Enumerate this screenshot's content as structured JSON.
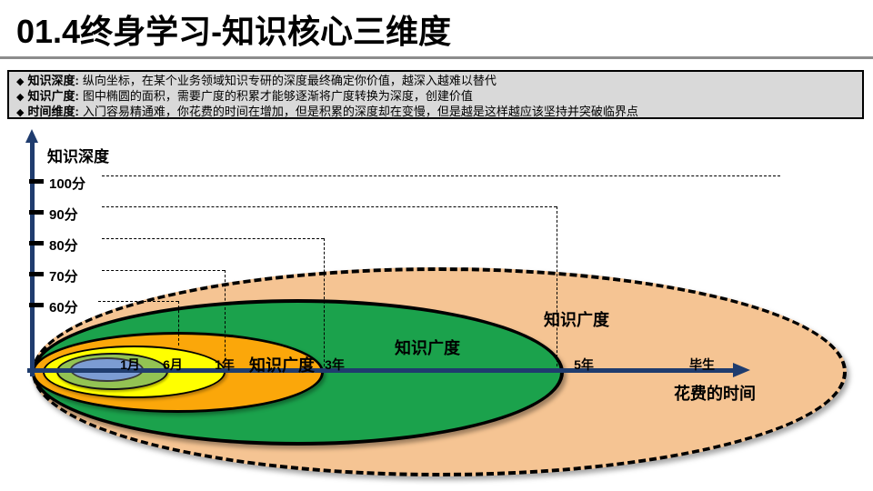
{
  "title": "01.4终身学习-知识核心三维度",
  "info_box": {
    "items": [
      {
        "bullet": "◆",
        "label": "知识深度:",
        "text": "纵向坐标，在某个业务领域知识专研的深度最终确定你价值，越深入越难以替代"
      },
      {
        "bullet": "◆",
        "label": "知识广度:",
        "text": "图中椭圆的面积，需要广度的积累才能够逐渐将广度转换为深度，创建价值"
      },
      {
        "bullet": "◆",
        "label": "时间维度:",
        "text": "入门容易精通难，你花费的时间在增加，但是积累的深度却在变慢，但是越是这样越应该坚持并突破临界点"
      }
    ]
  },
  "chart": {
    "y_axis_title": "知识深度",
    "x_axis_title": "花费的时间",
    "y_ticks": [
      {
        "label": "100分"
      },
      {
        "label": "90分"
      },
      {
        "label": "80分"
      },
      {
        "label": "70分"
      },
      {
        "label": "60分"
      }
    ],
    "x_ticks": [
      {
        "label": "1月"
      },
      {
        "label": "6月"
      },
      {
        "label": "1年"
      },
      {
        "label": "3年"
      },
      {
        "label": "5年"
      },
      {
        "label": "毕生"
      }
    ],
    "breadth_labels": [
      {
        "label": "知识广度"
      },
      {
        "label": "知识广度"
      },
      {
        "label": "知识广度"
      }
    ],
    "ellipses": [
      {
        "name": "breadth-lifetime",
        "time_extent": "毕生",
        "fill": "#f5c493",
        "border_style": "dashed"
      },
      {
        "name": "breadth-5-years",
        "time_extent": "5年",
        "fill": "#1ba24c",
        "border_style": "solid"
      },
      {
        "name": "breadth-3-years",
        "time_extent": "3年",
        "fill": "#fba70a",
        "border_style": "solid"
      },
      {
        "name": "breadth-1-year",
        "time_extent": "1年",
        "fill": "#ffff00",
        "border_style": "solid"
      },
      {
        "name": "breadth-6-months",
        "time_extent": "6月",
        "fill": "#93c353",
        "border_style": "solid"
      },
      {
        "name": "breadth-1-month",
        "time_extent": "1月",
        "fill": "#7c9cd3",
        "border_style": "solid"
      }
    ],
    "axis_color": "#1f3c6e",
    "guide_line_color": "#000000"
  },
  "colors": {
    "info_box_bg": "#d9d9d9",
    "divider": "#8c8c8c",
    "title_text": "#000000"
  }
}
